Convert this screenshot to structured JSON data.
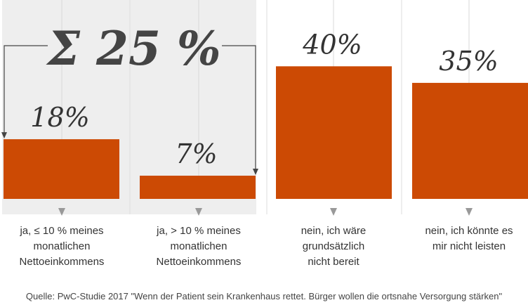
{
  "chart_data": {
    "type": "bar",
    "categories": [
      "ja, ≤ 10 % meines monatlichen Nettoeinkommens",
      "ja, > 10 % meines monatlichen Nettoeinkommens",
      "nein, ich wäre grundsätzlich nicht bereit",
      "nein, ich könnte es mir nicht leisten"
    ],
    "category_lines": [
      [
        "ja, ≤ 10 % meines",
        "monatlichen",
        "Nettoeinkommens"
      ],
      [
        "ja, > 10 % meines",
        "monatlichen",
        "Nettoeinkommens"
      ],
      [
        "nein, ich wäre",
        "grundsätzlich",
        "nicht bereit"
      ],
      [
        "nein, ich könnte es",
        "mir nicht leisten"
      ]
    ],
    "values": [
      18,
      7,
      40,
      35
    ],
    "data_labels": [
      "18%",
      "7%",
      "40%",
      "35%"
    ],
    "ylim": [
      0,
      60
    ],
    "bar_color": "#cc4a04",
    "highlight_color": "#eeeeee",
    "grid": true,
    "sum_annotation": {
      "text": "Σ 25 %",
      "value": 25,
      "spans_categories": [
        0,
        1
      ]
    }
  },
  "source": "Quelle: PwC-Studie 2017 \"Wenn der Patient sein Krankenhaus rettet. Bürger wollen die ortsnahe Versorgung stärken\""
}
